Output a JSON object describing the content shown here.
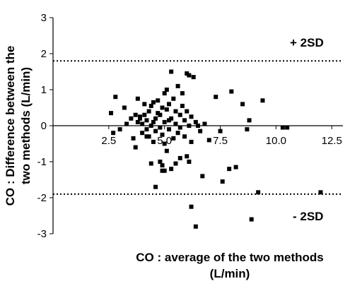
{
  "chart_data": {
    "type": "scatter",
    "title": "",
    "xlabel_lines": [
      "CO : average of the two methods",
      "(L/min)"
    ],
    "ylabel_lines": [
      "CO : Difference between the",
      "two methods (L/min)"
    ],
    "xlim": [
      0,
      13
    ],
    "ylim": [
      -3,
      3
    ],
    "x_ticks": [
      2.5,
      5.0,
      7.5,
      10.0,
      12.5
    ],
    "x_tick_labels": [
      "2.5",
      "5.0",
      "7.5",
      "10.0",
      "12.5"
    ],
    "y_ticks": [
      -3,
      -2,
      -1,
      0,
      1,
      2,
      3
    ],
    "y_tick_labels": [
      "-3",
      "-2",
      "-1",
      "0",
      "1",
      "2",
      "3"
    ],
    "grid": false,
    "reference_lines": [
      {
        "label": "+ 2SD",
        "y": 1.8,
        "style": "dotted"
      },
      {
        "label": "- 2SD",
        "y": -1.9,
        "style": "dotted"
      }
    ],
    "x": [
      2.6,
      2.7,
      2.8,
      3.0,
      3.2,
      3.3,
      3.5,
      3.6,
      3.7,
      3.7,
      3.8,
      3.8,
      3.9,
      4.0,
      4.0,
      4.1,
      4.1,
      4.2,
      4.2,
      4.3,
      4.3,
      4.4,
      4.4,
      4.5,
      4.5,
      4.5,
      4.6,
      4.6,
      4.7,
      4.7,
      4.8,
      4.8,
      4.9,
      4.9,
      5.0,
      5.0,
      5.0,
      5.1,
      5.1,
      5.2,
      5.2,
      5.2,
      5.3,
      5.3,
      5.4,
      5.4,
      5.5,
      5.5,
      5.6,
      5.6,
      5.7,
      5.7,
      5.8,
      5.8,
      5.9,
      5.9,
      6.0,
      6.0,
      6.1,
      6.1,
      6.2,
      6.2,
      6.3,
      6.4,
      6.5,
      6.6,
      6.8,
      7.0,
      7.3,
      7.5,
      7.6,
      7.9,
      8.0,
      8.2,
      8.5,
      8.7,
      8.9,
      9.2,
      9.4,
      10.3,
      10.5,
      12.0,
      4.8,
      4.9,
      5.0,
      5.1,
      6.2,
      6.4,
      8.8,
      4.4,
      4.6,
      5.3,
      5.7,
      6.1,
      3.9,
      4.2,
      4.9,
      5.5,
      6.0,
      6.7
    ],
    "y": [
      0.35,
      -0.2,
      0.8,
      -0.1,
      0.5,
      0.05,
      0.2,
      -0.35,
      0.3,
      -0.6,
      0.75,
      0.1,
      0.25,
      0.05,
      -0.2,
      0.6,
      0.3,
      -0.1,
      0.15,
      0.4,
      -0.3,
      0.55,
      0.0,
      0.1,
      -0.45,
      0.65,
      0.2,
      -0.15,
      0.35,
      0.7,
      -0.05,
      0.3,
      0.5,
      -0.25,
      0.9,
      0.1,
      -0.5,
      1.0,
      0.45,
      0.15,
      -0.1,
      0.6,
      1.5,
      0.2,
      -0.35,
      0.75,
      0.05,
      0.4,
      -0.2,
      1.1,
      0.3,
      -0.05,
      0.55,
      0.9,
      -0.3,
      0.15,
      1.45,
      0.4,
      0.0,
      1.4,
      0.25,
      -0.45,
      1.35,
      0.1,
      0.0,
      -0.15,
      0.05,
      -0.4,
      0.8,
      -0.15,
      -1.55,
      -1.2,
      0.95,
      -1.15,
      0.6,
      -0.1,
      -2.6,
      -1.85,
      0.7,
      -0.05,
      -0.05,
      -1.85,
      -1.0,
      -1.1,
      -1.25,
      -0.7,
      -2.25,
      -2.8,
      0.15,
      -1.05,
      -1.7,
      -1.2,
      -0.9,
      -1.0,
      0.2,
      -0.3,
      -1.25,
      -1.05,
      -0.85,
      -1.4
    ]
  }
}
